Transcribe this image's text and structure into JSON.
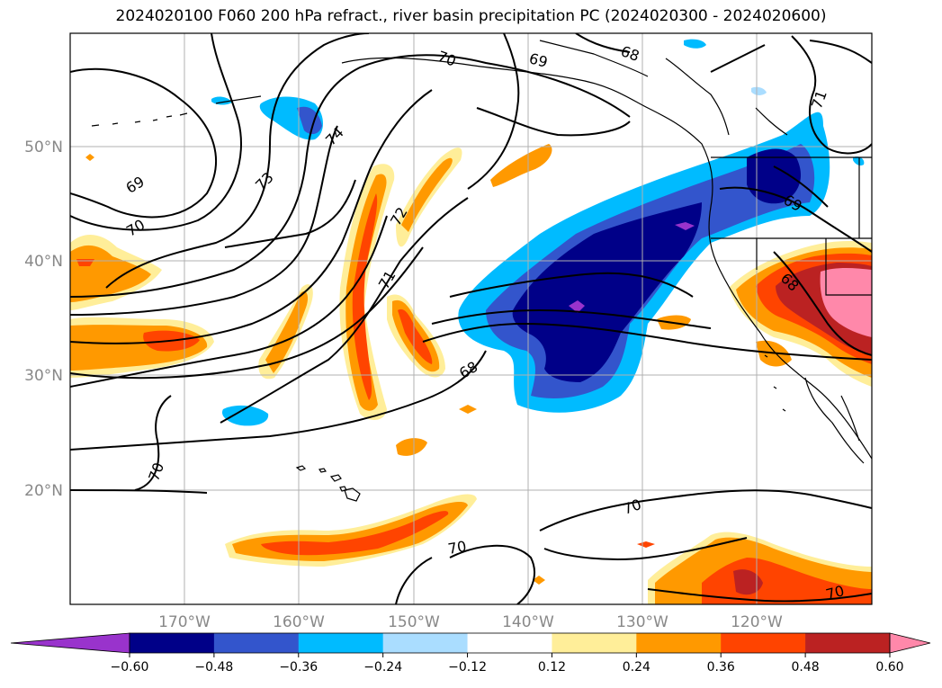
{
  "title": "2024020100 F060 200 hPa refract., river basin precipitation PC (2024020300 - 2024020600)",
  "map": {
    "lat_labels": [
      "50°N",
      "40°N",
      "30°N",
      "20°N"
    ],
    "lon_labels": [
      "170°W",
      "160°W",
      "150°W",
      "140°W",
      "130°W",
      "120°W"
    ],
    "contour_labels": [
      "70",
      "69",
      "68",
      "71",
      "74",
      "73",
      "69",
      "70",
      "72",
      "71",
      "68",
      "68",
      "69",
      "70",
      "70",
      "70",
      "70"
    ]
  },
  "colorbar": {
    "ticks": [
      "−0.60",
      "−0.48",
      "−0.36",
      "−0.24",
      "−0.12",
      "0.12",
      "0.24",
      "0.36",
      "0.48",
      "0.60"
    ],
    "colors": [
      "#9933cc",
      "#000088",
      "#3355cc",
      "#00bbff",
      "#aaddff",
      "#ffffff",
      "#ffee99",
      "#ff9900",
      "#ff4400",
      "#bb2222",
      "#ff88aa"
    ]
  },
  "chart_data": {
    "type": "heatmap",
    "title": "2024020100 F060 200 hPa refract., river basin precipitation PC (2024020300 - 2024020600)",
    "x_ticks": [
      "170°W",
      "160°W",
      "150°W",
      "140°W",
      "130°W",
      "120°W"
    ],
    "y_ticks": [
      "50°N",
      "40°N",
      "30°N",
      "20°N"
    ],
    "lon_range": [
      -180,
      -110
    ],
    "lat_range": [
      10,
      60
    ],
    "colorbar_levels": [
      -0.6,
      -0.48,
      -0.36,
      -0.24,
      -0.12,
      0.12,
      0.24,
      0.36,
      0.48,
      0.6
    ],
    "contour_levels": [
      68,
      69,
      70,
      71,
      72,
      73,
      74
    ],
    "grid": true
  }
}
